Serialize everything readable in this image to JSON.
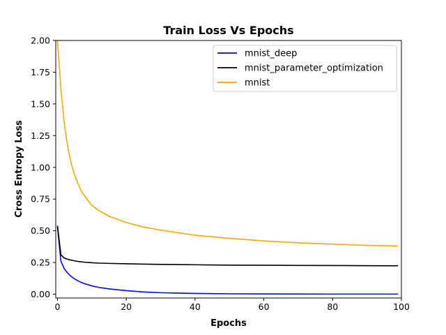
{
  "chart_data": {
    "type": "line",
    "title": "Train Loss Vs Epochs",
    "xlabel": "Epochs",
    "ylabel": "Cross Entropy Loss",
    "xlim": [
      -0.5,
      100
    ],
    "ylim": [
      -0.03,
      2.0
    ],
    "xticks": [
      0,
      20,
      40,
      60,
      80,
      100
    ],
    "xtick_labels": [
      "0",
      "20",
      "40",
      "60",
      "80",
      "100"
    ],
    "yticks": [
      0,
      0.25,
      0.5,
      0.75,
      1.0,
      1.25,
      1.5,
      1.75,
      2.0
    ],
    "ytick_labels": [
      "0.00",
      "0.25",
      "0.50",
      "0.75",
      "1.00",
      "1.25",
      "1.50",
      "1.75",
      "2.00"
    ],
    "grid": false,
    "legend_position": "top-right",
    "x": [
      0,
      1,
      2,
      3,
      4,
      5,
      6,
      7,
      8,
      10,
      12,
      15,
      20,
      25,
      30,
      40,
      50,
      60,
      70,
      80,
      90,
      99
    ],
    "series": [
      {
        "name": "mnist_deep",
        "color": "#0000ff",
        "values": [
          0.53,
          0.26,
          0.2,
          0.165,
          0.14,
          0.12,
          0.105,
          0.092,
          0.082,
          0.066,
          0.054,
          0.042,
          0.028,
          0.018,
          0.012,
          0.006,
          0.003,
          0.002,
          0.0015,
          0.001,
          0.001,
          0.001
        ]
      },
      {
        "name": "mnist_parameter_optimization",
        "color": "#000000",
        "values": [
          0.54,
          0.31,
          0.285,
          0.275,
          0.268,
          0.263,
          0.258,
          0.255,
          0.252,
          0.248,
          0.245,
          0.243,
          0.24,
          0.237,
          0.235,
          0.232,
          0.229,
          0.228,
          0.227,
          0.226,
          0.225,
          0.224
        ]
      },
      {
        "name": "mnist",
        "color": "#ffa500",
        "values": [
          2.0,
          1.62,
          1.34,
          1.16,
          1.03,
          0.94,
          0.87,
          0.81,
          0.77,
          0.7,
          0.66,
          0.615,
          0.565,
          0.53,
          0.505,
          0.465,
          0.44,
          0.42,
          0.405,
          0.395,
          0.385,
          0.38
        ]
      }
    ]
  }
}
